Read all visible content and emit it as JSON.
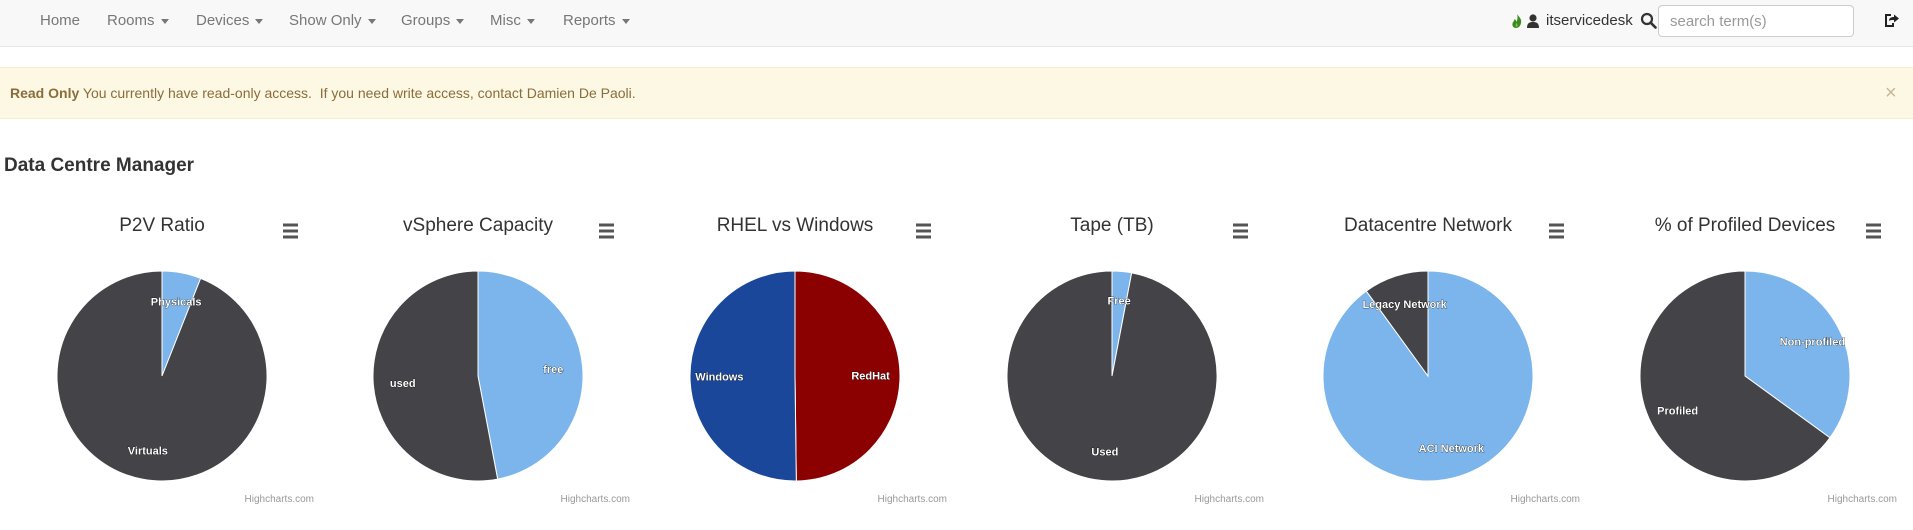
{
  "nav": {
    "items": [
      {
        "label": "Home",
        "dropdown": false
      },
      {
        "label": "Rooms",
        "dropdown": true
      },
      {
        "label": "Devices",
        "dropdown": true
      },
      {
        "label": "Show Only",
        "dropdown": true
      },
      {
        "label": "Groups",
        "dropdown": true
      },
      {
        "label": "Misc",
        "dropdown": true
      },
      {
        "label": "Reports",
        "dropdown": true
      }
    ],
    "username": "itservicedesk",
    "search_placeholder": "search term(s)"
  },
  "alert": {
    "strong": "Read Only",
    "message": " You currently have read-only access.  If you need write access, contact Damien De Paoli.",
    "close": "×"
  },
  "page": {
    "title": "Data Centre Manager"
  },
  "colors": {
    "dark": "#434348",
    "light_blue": "#7cb5ec",
    "blue": "#1a4799",
    "red": "#8b0000"
  },
  "credit": "Highcharts.com",
  "chart_data": [
    {
      "type": "pie",
      "title": "P2V Ratio",
      "slices": [
        {
          "name": "Physicals",
          "value": 6,
          "color": "#7cb5ec"
        },
        {
          "name": "Virtuals",
          "value": 94,
          "color": "#434348"
        }
      ]
    },
    {
      "type": "pie",
      "title": "vSphere Capacity",
      "slices": [
        {
          "name": "free",
          "value": 47,
          "color": "#7cb5ec"
        },
        {
          "name": "used",
          "value": 53,
          "color": "#434348"
        }
      ]
    },
    {
      "type": "pie",
      "title": "RHEL vs Windows",
      "slices": [
        {
          "name": "RedHat",
          "value": 49.8,
          "color": "#8b0000"
        },
        {
          "name": "Windows",
          "value": 50.2,
          "color": "#1a4799"
        }
      ]
    },
    {
      "type": "pie",
      "title": "Tape (TB)",
      "slices": [
        {
          "name": "Free",
          "value": 3,
          "color": "#7cb5ec"
        },
        {
          "name": "Used",
          "value": 97,
          "color": "#434348"
        }
      ]
    },
    {
      "type": "pie",
      "title": "Datacentre Network",
      "slices": [
        {
          "name": "ACI Network",
          "value": 90,
          "color": "#7cb5ec"
        },
        {
          "name": "Legacy Network",
          "value": 10,
          "color": "#434348"
        }
      ]
    },
    {
      "type": "pie",
      "title": "% of Profiled Devices",
      "slices": [
        {
          "name": "Non-profiled",
          "value": 35,
          "color": "#7cb5ec"
        },
        {
          "name": "Profiled",
          "value": 65,
          "color": "#434348"
        }
      ]
    }
  ]
}
